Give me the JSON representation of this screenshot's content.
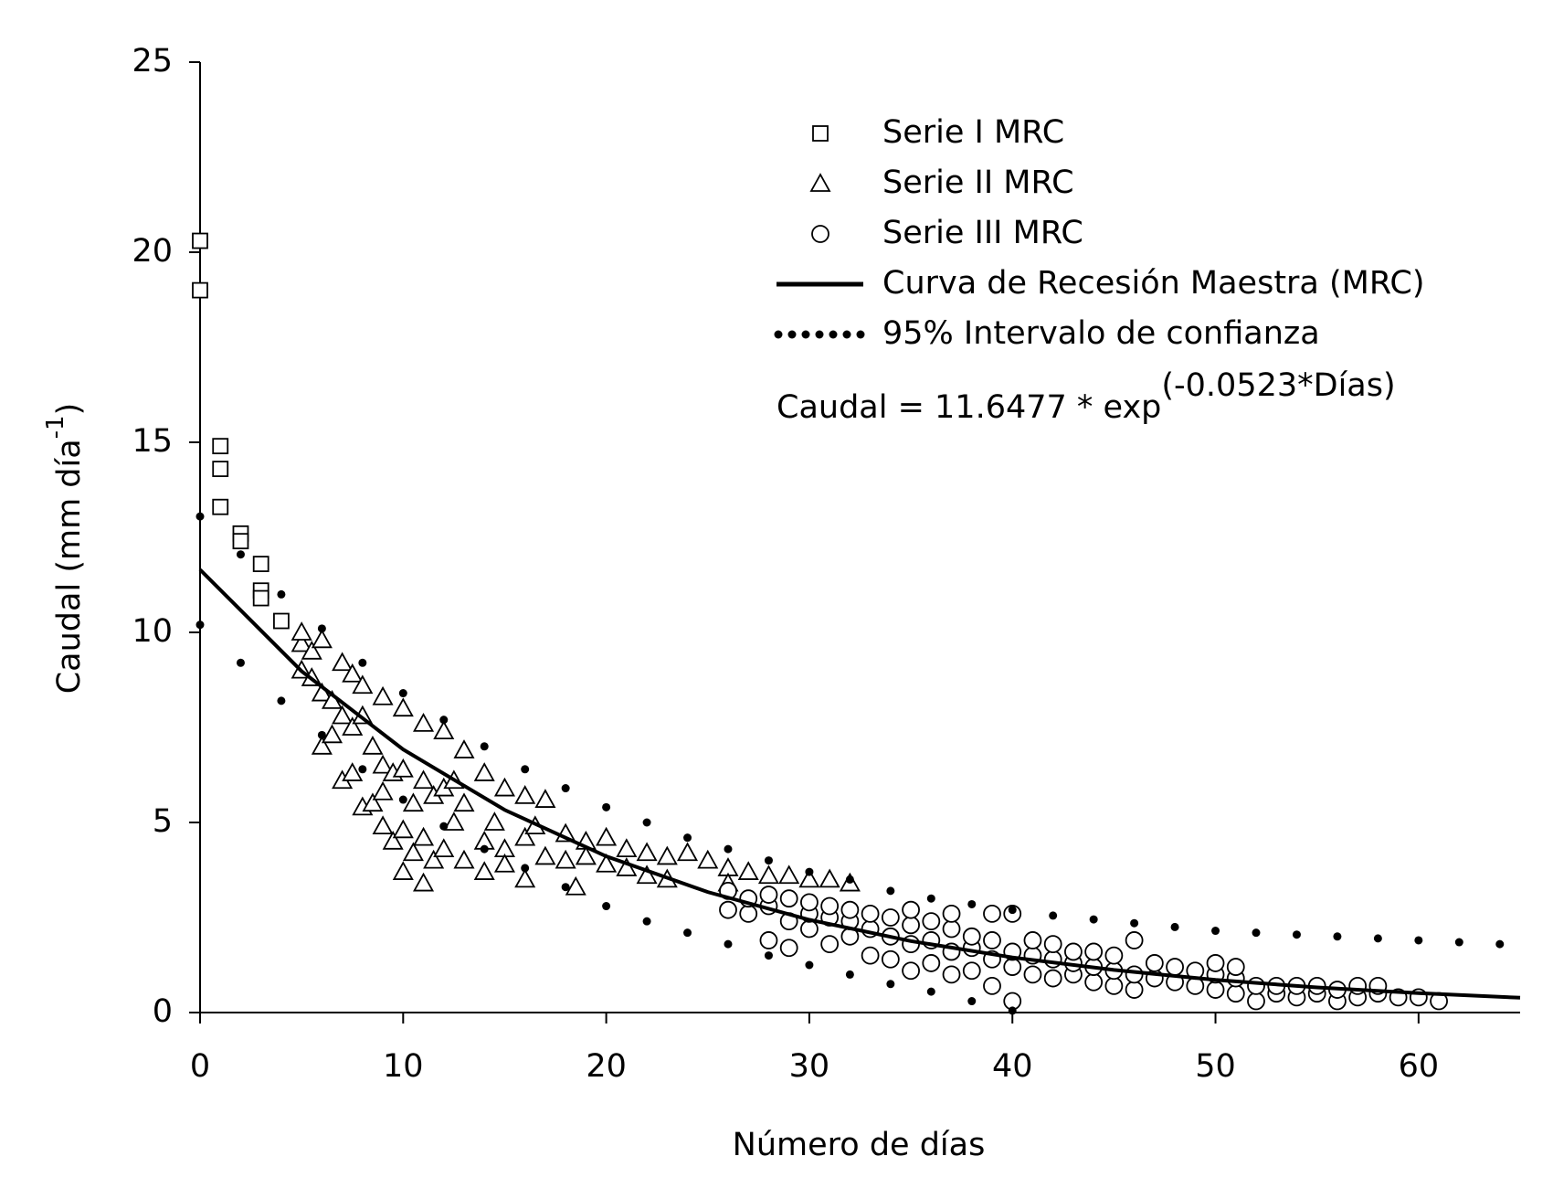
{
  "chart_data": {
    "type": "scatter",
    "x_label": "Número de días",
    "y_label": "Caudal (mm día",
    "y_label_superscript": "-1",
    "y_label_end": ")",
    "equation": "Caudal = 11.6477 * exp",
    "equation_superscript": "(-0.0523*Días)",
    "xlim": [
      0,
      65
    ],
    "ylim": [
      0,
      25
    ],
    "xticks": [
      0,
      10,
      20,
      30,
      40,
      50,
      60
    ],
    "yticks": [
      0,
      5,
      10,
      15,
      20,
      25
    ],
    "series": [
      {
        "name": "Serie I MRC",
        "style": "square",
        "color": "#000000",
        "x": [
          0,
          0,
          1,
          1,
          1,
          2,
          2,
          3,
          3,
          3,
          4
        ],
        "values": [
          20.3,
          19,
          14.9,
          14.3,
          13.3,
          12.6,
          12.4,
          11.8,
          11.1,
          10.9,
          10.3
        ]
      },
      {
        "name": "Serie II MRC",
        "style": "triangle",
        "color": "#000000",
        "x": [
          5,
          5,
          5,
          5.5,
          5.5,
          6,
          6,
          6,
          6.5,
          6.5,
          7,
          7,
          7,
          7.5,
          7.5,
          7.5,
          8,
          8,
          8,
          8.5,
          8.5,
          9,
          9,
          9,
          9,
          9.5,
          9.5,
          10,
          10,
          10,
          10,
          10.5,
          10.5,
          11,
          11,
          11,
          11,
          11.5,
          11.5,
          12,
          12,
          12,
          12.5,
          12.5,
          13,
          13,
          13,
          14,
          14,
          14,
          14.5,
          15,
          15,
          15,
          16,
          16,
          16,
          16.5,
          17,
          17,
          18,
          18,
          18.5,
          19,
          19,
          20,
          20,
          21,
          21,
          22,
          22,
          23,
          23,
          24,
          25,
          26,
          26,
          27,
          28,
          29,
          30,
          31,
          32
        ],
        "values": [
          9.7,
          9.0,
          10.0,
          9.5,
          8.8,
          9.8,
          8.4,
          7.0,
          8.2,
          7.3,
          9.2,
          7.8,
          6.1,
          8.9,
          7.5,
          6.3,
          8.6,
          7.8,
          5.4,
          7.0,
          5.5,
          8.3,
          6.5,
          5.8,
          4.9,
          6.3,
          4.5,
          8.0,
          6.4,
          4.8,
          3.7,
          5.5,
          4.2,
          7.6,
          6.1,
          4.6,
          3.4,
          5.7,
          4.0,
          7.4,
          5.9,
          4.3,
          6.1,
          5.0,
          6.9,
          5.5,
          4.0,
          6.3,
          4.5,
          3.7,
          5.0,
          5.9,
          4.3,
          3.9,
          5.7,
          4.6,
          3.5,
          4.9,
          5.6,
          4.1,
          4.7,
          4.0,
          3.3,
          4.5,
          4.1,
          4.6,
          3.9,
          4.3,
          3.8,
          4.2,
          3.6,
          4.1,
          3.5,
          4.2,
          4.0,
          3.8,
          3.4,
          3.7,
          3.6,
          3.6,
          3.5,
          3.5,
          3.4
        ]
      },
      {
        "name": "Serie III MRC",
        "style": "circle",
        "color": "#000000",
        "x": [
          26,
          26,
          27,
          27,
          28,
          28,
          28,
          29,
          29,
          29,
          30,
          30,
          30,
          31,
          31,
          31,
          32,
          32,
          32,
          33,
          33,
          33,
          34,
          34,
          34,
          35,
          35,
          35,
          35,
          36,
          36,
          36,
          37,
          37,
          37,
          37,
          38,
          38,
          38,
          39,
          39,
          39,
          39,
          40,
          40,
          40,
          40,
          41,
          41,
          41,
          42,
          42,
          42,
          43,
          43,
          43,
          44,
          44,
          44,
          45,
          45,
          45,
          46,
          46,
          46,
          47,
          47,
          48,
          48,
          49,
          49,
          50,
          50,
          50,
          51,
          51,
          51,
          52,
          52,
          53,
          53,
          54,
          54,
          55,
          55,
          56,
          56,
          57,
          57,
          58,
          58,
          59,
          60,
          61
        ],
        "values": [
          2.7,
          3.2,
          2.6,
          3.0,
          1.9,
          2.8,
          3.1,
          1.7,
          2.4,
          3.0,
          2.2,
          2.6,
          2.9,
          1.8,
          2.5,
          2.8,
          2.0,
          2.4,
          2.7,
          1.5,
          2.2,
          2.6,
          1.4,
          2.0,
          2.5,
          1.1,
          1.8,
          2.3,
          2.7,
          1.3,
          1.9,
          2.4,
          1.0,
          1.6,
          2.2,
          2.6,
          1.1,
          1.7,
          2.0,
          0.7,
          1.4,
          1.9,
          2.6,
          0.3,
          1.2,
          1.6,
          2.6,
          1.0,
          1.5,
          1.9,
          0.9,
          1.4,
          1.8,
          1.0,
          1.3,
          1.6,
          0.8,
          1.2,
          1.6,
          0.7,
          1.1,
          1.5,
          0.6,
          1.0,
          1.9,
          0.9,
          1.3,
          0.8,
          1.2,
          0.7,
          1.1,
          0.6,
          1.0,
          1.3,
          0.5,
          0.9,
          1.2,
          0.3,
          0.7,
          0.5,
          0.7,
          0.4,
          0.7,
          0.5,
          0.7,
          0.3,
          0.6,
          0.4,
          0.7,
          0.5,
          0.7,
          0.4,
          0.4,
          0.3
        ]
      },
      {
        "name": "Curva de Recesión Maestra (MRC)",
        "style": "line",
        "color": "#000000",
        "x": [
          0,
          5,
          10,
          15,
          20,
          25,
          30,
          35,
          40,
          45,
          50,
          55,
          60,
          65
        ],
        "values": [
          11.65,
          8.98,
          6.92,
          5.33,
          4.11,
          3.17,
          2.44,
          1.88,
          1.45,
          1.12,
          0.86,
          0.66,
          0.51,
          0.39
        ]
      },
      {
        "name": "95% Intervalo de confianza",
        "style": "dots",
        "color": "#000000",
        "x": [
          0,
          2,
          4,
          6,
          8,
          10,
          12,
          14,
          16,
          18,
          20,
          22,
          24,
          26,
          28,
          30,
          32,
          34,
          36,
          38,
          40,
          42,
          44,
          46,
          48,
          50,
          52,
          54,
          56,
          58,
          60,
          62,
          64
        ],
        "values": [
          13.05,
          12.05,
          11.0,
          10.1,
          9.2,
          8.4,
          7.7,
          7.0,
          6.4,
          5.9,
          5.4,
          5.0,
          4.6,
          4.3,
          4.0,
          3.7,
          3.5,
          3.2,
          3.0,
          2.85,
          2.7,
          2.55,
          2.45,
          2.35,
          2.25,
          2.15,
          2.1,
          2.05,
          2.0,
          1.95,
          1.9,
          1.85,
          1.8
        ]
      },
      {
        "style": "dots",
        "color": "#000000",
        "x": [
          0,
          2,
          4,
          6,
          8,
          10,
          12,
          14,
          16,
          18,
          20,
          22,
          24,
          26,
          28,
          30,
          32,
          34,
          36,
          38,
          40
        ],
        "values": [
          10.2,
          9.2,
          8.2,
          7.3,
          6.4,
          5.6,
          4.9,
          4.3,
          3.8,
          3.3,
          2.8,
          2.4,
          2.1,
          1.8,
          1.5,
          1.25,
          1.0,
          0.75,
          0.55,
          0.3,
          0.05
        ]
      }
    ]
  }
}
